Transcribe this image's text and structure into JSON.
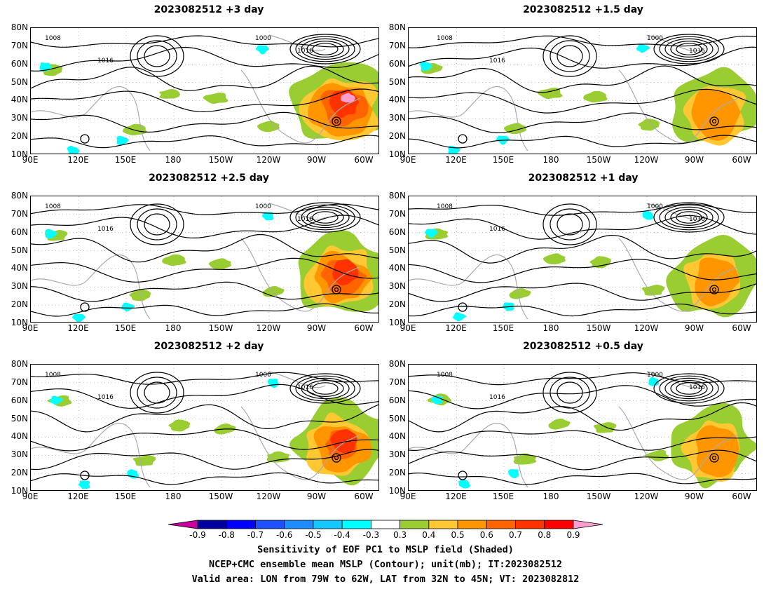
{
  "panels": [
    {
      "title": "2023082512  +3 day"
    },
    {
      "title": "2023082512  +1.5 day"
    },
    {
      "title": "2023082512  +2.5 day"
    },
    {
      "title": "2023082512  +1 day"
    },
    {
      "title": "2023082512  +2 day"
    },
    {
      "title": "2023082512  +0.5 day"
    }
  ],
  "axes": {
    "y_ticks": [
      "80N",
      "70N",
      "60N",
      "50N",
      "40N",
      "30N",
      "20N",
      "10N"
    ],
    "x_ticks": [
      "90E",
      "120E",
      "150E",
      "180",
      "150W",
      "120W",
      "90W",
      "60W"
    ]
  },
  "contour_labels": [
    "1008",
    "1016",
    "1000",
    "1016"
  ],
  "colorbar": {
    "labels": [
      "-0.9",
      "-0.8",
      "-0.7",
      "-0.6",
      "-0.5",
      "-0.4",
      "-0.3",
      "0.3",
      "0.4",
      "0.5",
      "0.6",
      "0.7",
      "0.8",
      "0.9"
    ],
    "colors": [
      "#c8009e",
      "#0000a0",
      "#0000ff",
      "#1e50ff",
      "#1e8cff",
      "#14c8ff",
      "#00ffff",
      "#ffffff",
      "#9acd32",
      "#ffc832",
      "#ff9600",
      "#ff6400",
      "#ff3200",
      "#ff0000",
      "#ff9ecf"
    ]
  },
  "caption": {
    "line1": "Sensitivity of EOF PC1 to MSLP field (Shaded)",
    "line2": "NCEP+CMC ensemble mean MSLP (Contour); unit(mb); IT:2023082512",
    "line3": "Valid area: LON from 79W to 62W, LAT from 32N to 45N; VT: 2023082812"
  }
}
